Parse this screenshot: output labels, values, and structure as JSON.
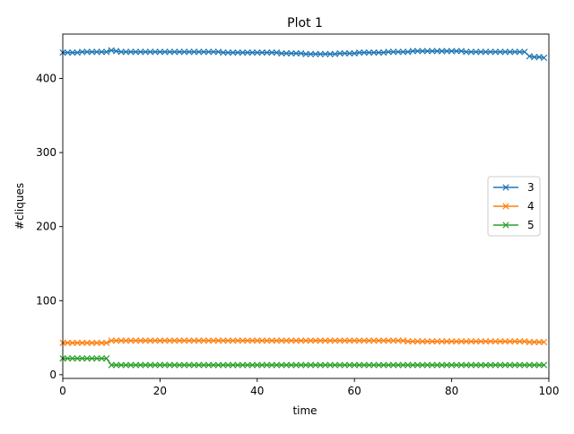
{
  "chart_data": {
    "type": "line",
    "title": "Plot 1",
    "xlabel": "time",
    "ylabel": "#cliques",
    "xlim": [
      0,
      100
    ],
    "ylim": [
      -5,
      460
    ],
    "xticks": [
      0,
      20,
      40,
      60,
      80,
      100
    ],
    "yticks": [
      0,
      100,
      200,
      300,
      400
    ],
    "grid": false,
    "legend_position": "center-right",
    "marker": "x",
    "series": [
      {
        "name": "3",
        "color": "#1f77b4",
        "x": [
          0,
          1,
          2,
          3,
          4,
          5,
          6,
          7,
          8,
          9,
          10,
          11,
          12,
          13,
          14,
          15,
          16,
          17,
          18,
          19,
          20,
          21,
          22,
          23,
          24,
          25,
          26,
          27,
          28,
          29,
          30,
          31,
          32,
          33,
          34,
          35,
          36,
          37,
          38,
          39,
          40,
          41,
          42,
          43,
          44,
          45,
          46,
          47,
          48,
          49,
          50,
          51,
          52,
          53,
          54,
          55,
          56,
          57,
          58,
          59,
          60,
          61,
          62,
          63,
          64,
          65,
          66,
          67,
          68,
          69,
          70,
          71,
          72,
          73,
          74,
          75,
          76,
          77,
          78,
          79,
          80,
          81,
          82,
          83,
          84,
          85,
          86,
          87,
          88,
          89,
          90,
          91,
          92,
          93,
          94,
          95,
          96,
          97,
          98,
          99
        ],
        "values": [
          435,
          435,
          435,
          435,
          436,
          436,
          436,
          436,
          436,
          436,
          438,
          437,
          436,
          436,
          436,
          436,
          436,
          436,
          436,
          436,
          436,
          436,
          436,
          436,
          436,
          436,
          436,
          436,
          436,
          436,
          436,
          436,
          436,
          435,
          435,
          435,
          435,
          435,
          435,
          435,
          435,
          435,
          435,
          435,
          435,
          434,
          434,
          434,
          434,
          434,
          433,
          433,
          433,
          433,
          433,
          433,
          433,
          434,
          434,
          434,
          434,
          435,
          435,
          435,
          435,
          435,
          435,
          436,
          436,
          436,
          436,
          436,
          437,
          437,
          437,
          437,
          437,
          437,
          437,
          437,
          437,
          437,
          437,
          436,
          436,
          436,
          436,
          436,
          436,
          436,
          436,
          436,
          436,
          436,
          436,
          436,
          430,
          429,
          429,
          428
        ]
      },
      {
        "name": "4",
        "color": "#ff7f0e",
        "x": [
          0,
          1,
          2,
          3,
          4,
          5,
          6,
          7,
          8,
          9,
          10,
          11,
          12,
          13,
          14,
          15,
          16,
          17,
          18,
          19,
          20,
          21,
          22,
          23,
          24,
          25,
          26,
          27,
          28,
          29,
          30,
          31,
          32,
          33,
          34,
          35,
          36,
          37,
          38,
          39,
          40,
          41,
          42,
          43,
          44,
          45,
          46,
          47,
          48,
          49,
          50,
          51,
          52,
          53,
          54,
          55,
          56,
          57,
          58,
          59,
          60,
          61,
          62,
          63,
          64,
          65,
          66,
          67,
          68,
          69,
          70,
          71,
          72,
          73,
          74,
          75,
          76,
          77,
          78,
          79,
          80,
          81,
          82,
          83,
          84,
          85,
          86,
          87,
          88,
          89,
          90,
          91,
          92,
          93,
          94,
          95,
          96,
          97,
          98,
          99
        ],
        "values": [
          43,
          43,
          43,
          43,
          43,
          43,
          43,
          43,
          43,
          43,
          46,
          46,
          46,
          46,
          46,
          46,
          46,
          46,
          46,
          46,
          46,
          46,
          46,
          46,
          46,
          46,
          46,
          46,
          46,
          46,
          46,
          46,
          46,
          46,
          46,
          46,
          46,
          46,
          46,
          46,
          46,
          46,
          46,
          46,
          46,
          46,
          46,
          46,
          46,
          46,
          46,
          46,
          46,
          46,
          46,
          46,
          46,
          46,
          46,
          46,
          46,
          46,
          46,
          46,
          46,
          46,
          46,
          46,
          46,
          46,
          46,
          45,
          45,
          45,
          45,
          45,
          45,
          45,
          45,
          45,
          45,
          45,
          45,
          45,
          45,
          45,
          45,
          45,
          45,
          45,
          45,
          45,
          45,
          45,
          45,
          45,
          44,
          44,
          44,
          44
        ]
      },
      {
        "name": "5",
        "color": "#2ca02c",
        "x": [
          0,
          1,
          2,
          3,
          4,
          5,
          6,
          7,
          8,
          9,
          10,
          11,
          12,
          13,
          14,
          15,
          16,
          17,
          18,
          19,
          20,
          21,
          22,
          23,
          24,
          25,
          26,
          27,
          28,
          29,
          30,
          31,
          32,
          33,
          34,
          35,
          36,
          37,
          38,
          39,
          40,
          41,
          42,
          43,
          44,
          45,
          46,
          47,
          48,
          49,
          50,
          51,
          52,
          53,
          54,
          55,
          56,
          57,
          58,
          59,
          60,
          61,
          62,
          63,
          64,
          65,
          66,
          67,
          68,
          69,
          70,
          71,
          72,
          73,
          74,
          75,
          76,
          77,
          78,
          79,
          80,
          81,
          82,
          83,
          84,
          85,
          86,
          87,
          88,
          89,
          90,
          91,
          92,
          93,
          94,
          95,
          96,
          97,
          98,
          99
        ],
        "values": [
          22,
          22,
          22,
          22,
          22,
          22,
          22,
          22,
          22,
          22,
          13,
          13,
          13,
          13,
          13,
          13,
          13,
          13,
          13,
          13,
          13,
          13,
          13,
          13,
          13,
          13,
          13,
          13,
          13,
          13,
          13,
          13,
          13,
          13,
          13,
          13,
          13,
          13,
          13,
          13,
          13,
          13,
          13,
          13,
          13,
          13,
          13,
          13,
          13,
          13,
          13,
          13,
          13,
          13,
          13,
          13,
          13,
          13,
          13,
          13,
          13,
          13,
          13,
          13,
          13,
          13,
          13,
          13,
          13,
          13,
          13,
          13,
          13,
          13,
          13,
          13,
          13,
          13,
          13,
          13,
          13,
          13,
          13,
          13,
          13,
          13,
          13,
          13,
          13,
          13,
          13,
          13,
          13,
          13,
          13,
          13,
          13,
          13,
          13,
          13
        ]
      }
    ]
  }
}
